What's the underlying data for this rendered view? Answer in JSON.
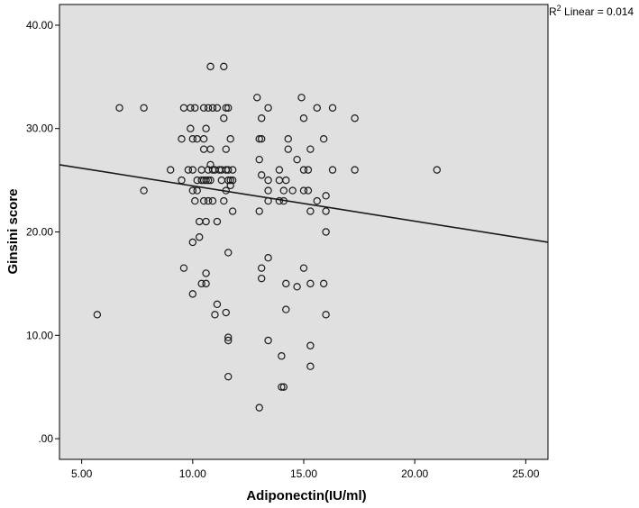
{
  "chart_data": {
    "type": "scatter",
    "title": "",
    "xlabel": "Adiponectin(IU/ml)",
    "ylabel": "Ginsini score",
    "xlim": [
      4,
      26
    ],
    "ylim": [
      -2,
      42
    ],
    "x_ticks": [
      5,
      10,
      15,
      20,
      25
    ],
    "x_tick_labels": [
      "5.00",
      "10.00",
      "15.00",
      "20.00",
      "25.00"
    ],
    "y_ticks": [
      0,
      10,
      20,
      30,
      40
    ],
    "y_tick_labels": [
      ".00",
      "10.00",
      "20.00",
      "30.00",
      "40.00"
    ],
    "grid": false,
    "background_color": "#e0e0e0",
    "marker_color": "#1a1a1a",
    "annotation": {
      "r2_prefix": "R",
      "r2_sup": "2",
      "r2_text": " Linear = 0.014"
    },
    "fit_line": {
      "x": [
        4,
        26
      ],
      "y": [
        26.5,
        19.0
      ]
    },
    "points": [
      [
        5.7,
        12
      ],
      [
        6.7,
        32
      ],
      [
        7.8,
        32
      ],
      [
        7.8,
        24
      ],
      [
        9.0,
        26
      ],
      [
        9.5,
        29
      ],
      [
        9.5,
        25
      ],
      [
        9.6,
        32
      ],
      [
        9.6,
        16.5
      ],
      [
        9.8,
        26
      ],
      [
        9.9,
        32
      ],
      [
        9.9,
        30
      ],
      [
        10.0,
        29
      ],
      [
        10.0,
        26
      ],
      [
        10.0,
        24
      ],
      [
        10.0,
        19
      ],
      [
        10.0,
        14
      ],
      [
        10.1,
        32
      ],
      [
        10.1,
        23
      ],
      [
        10.2,
        29
      ],
      [
        10.2,
        25
      ],
      [
        10.2,
        24
      ],
      [
        10.3,
        21
      ],
      [
        10.3,
        19.5
      ],
      [
        10.4,
        26
      ],
      [
        10.4,
        25
      ],
      [
        10.4,
        15
      ],
      [
        10.5,
        32
      ],
      [
        10.5,
        29
      ],
      [
        10.5,
        28
      ],
      [
        10.5,
        25
      ],
      [
        10.5,
        23
      ],
      [
        10.6,
        30
      ],
      [
        10.6,
        25
      ],
      [
        10.6,
        16
      ],
      [
        10.6,
        15
      ],
      [
        10.6,
        21
      ],
      [
        10.7,
        32
      ],
      [
        10.7,
        26
      ],
      [
        10.7,
        25
      ],
      [
        10.7,
        23
      ],
      [
        10.8,
        36
      ],
      [
        10.8,
        28
      ],
      [
        10.8,
        26.5
      ],
      [
        10.8,
        25
      ],
      [
        10.9,
        26
      ],
      [
        10.9,
        23
      ],
      [
        10.9,
        32
      ],
      [
        11.0,
        26
      ],
      [
        11.0,
        12
      ],
      [
        11.1,
        32
      ],
      [
        11.1,
        21
      ],
      [
        11.1,
        13
      ],
      [
        11.2,
        26
      ],
      [
        11.3,
        26
      ],
      [
        11.3,
        25
      ],
      [
        11.4,
        36
      ],
      [
        11.4,
        31
      ],
      [
        11.4,
        23
      ],
      [
        11.5,
        28
      ],
      [
        11.5,
        12.2
      ],
      [
        11.5,
        32
      ],
      [
        11.5,
        26
      ],
      [
        11.5,
        24
      ],
      [
        11.6,
        32
      ],
      [
        11.6,
        26
      ],
      [
        11.6,
        25
      ],
      [
        11.6,
        18
      ],
      [
        11.6,
        9.5
      ],
      [
        11.6,
        9.8
      ],
      [
        11.6,
        6
      ],
      [
        11.7,
        29
      ],
      [
        11.7,
        24.5
      ],
      [
        11.7,
        25
      ],
      [
        11.8,
        26
      ],
      [
        11.8,
        25
      ],
      [
        11.8,
        22
      ],
      [
        12.9,
        33
      ],
      [
        13.0,
        29
      ],
      [
        13.0,
        27
      ],
      [
        13.0,
        22
      ],
      [
        13.0,
        3
      ],
      [
        13.1,
        31
      ],
      [
        13.1,
        29
      ],
      [
        13.1,
        25.5
      ],
      [
        13.1,
        16.5
      ],
      [
        13.1,
        15.5
      ],
      [
        13.4,
        32
      ],
      [
        13.4,
        25
      ],
      [
        13.4,
        24
      ],
      [
        13.4,
        23
      ],
      [
        13.4,
        17.5
      ],
      [
        13.4,
        9.5
      ],
      [
        13.9,
        26
      ],
      [
        13.9,
        25
      ],
      [
        13.9,
        23
      ],
      [
        14.0,
        8
      ],
      [
        14.0,
        5
      ],
      [
        14.1,
        24
      ],
      [
        14.1,
        23
      ],
      [
        14.1,
        5
      ],
      [
        14.2,
        25
      ],
      [
        14.2,
        15
      ],
      [
        14.2,
        12.5
      ],
      [
        14.3,
        29
      ],
      [
        14.3,
        28
      ],
      [
        14.5,
        24
      ],
      [
        14.7,
        27
      ],
      [
        14.7,
        14.7
      ],
      [
        14.9,
        33
      ],
      [
        15.0,
        26
      ],
      [
        15.0,
        24
      ],
      [
        15.0,
        31
      ],
      [
        15.0,
        16.5
      ],
      [
        15.2,
        26
      ],
      [
        15.2,
        24
      ],
      [
        15.3,
        28
      ],
      [
        15.3,
        22
      ],
      [
        15.3,
        15
      ],
      [
        15.3,
        9
      ],
      [
        15.3,
        7
      ],
      [
        15.6,
        32
      ],
      [
        15.6,
        23
      ],
      [
        15.9,
        29
      ],
      [
        15.9,
        15
      ],
      [
        16.0,
        23.5
      ],
      [
        16.0,
        22
      ],
      [
        16.0,
        20
      ],
      [
        16.0,
        12
      ],
      [
        16.3,
        32
      ],
      [
        16.3,
        26
      ],
      [
        17.3,
        31
      ],
      [
        17.3,
        26
      ],
      [
        21.0,
        26
      ]
    ]
  }
}
